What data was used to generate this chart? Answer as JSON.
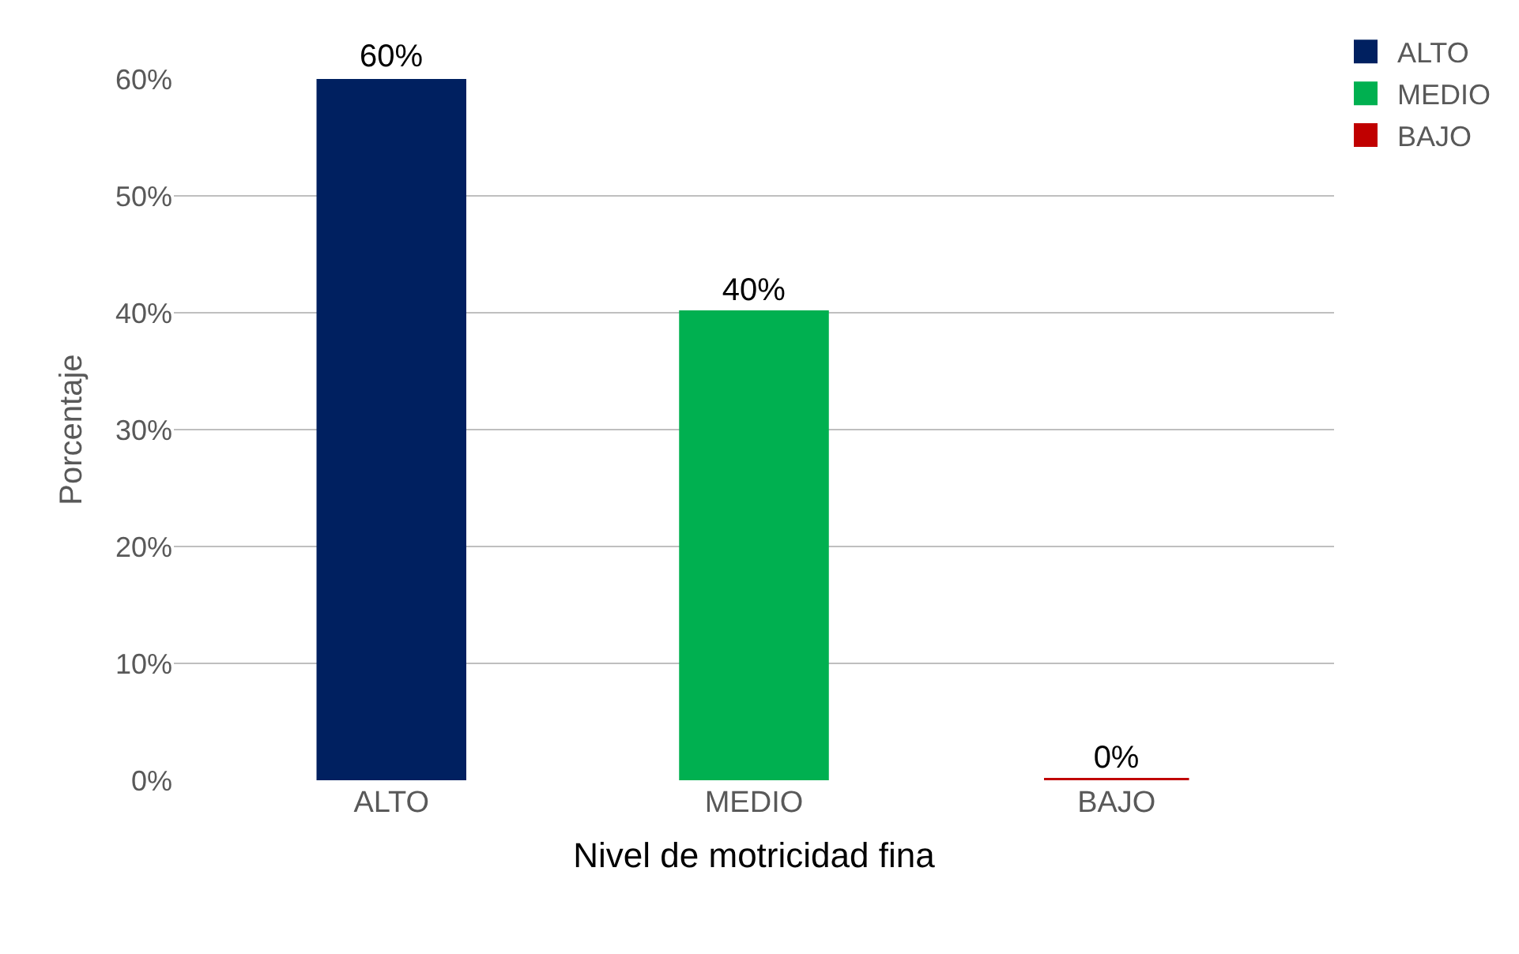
{
  "chart_data": {
    "type": "bar",
    "xlabel": "Nivel de motricidad fina",
    "ylabel": "Porcentaje",
    "categories": [
      "ALTO",
      "MEDIO",
      "BAJO"
    ],
    "series": [
      {
        "name": "ALTO",
        "color": "#002060",
        "values": [
          60,
          null,
          null
        ]
      },
      {
        "name": "MEDIO",
        "color": "#00b050",
        "values": [
          null,
          40,
          null
        ]
      },
      {
        "name": "BAJO",
        "color": "#c00000",
        "values": [
          null,
          null,
          0
        ]
      }
    ],
    "value_labels": [
      "60%",
      "40%",
      "0%"
    ],
    "ylim": [
      0,
      60
    ],
    "yticks": [
      {
        "value": 0,
        "label": "0%"
      },
      {
        "value": 10,
        "label": "10%"
      },
      {
        "value": 20,
        "label": "20%"
      },
      {
        "value": 30,
        "label": "30%"
      },
      {
        "value": 40,
        "label": "40%"
      },
      {
        "value": 50,
        "label": "50%"
      },
      {
        "value": 60,
        "label": "60%"
      }
    ],
    "grid": "y",
    "legend": "top right"
  }
}
